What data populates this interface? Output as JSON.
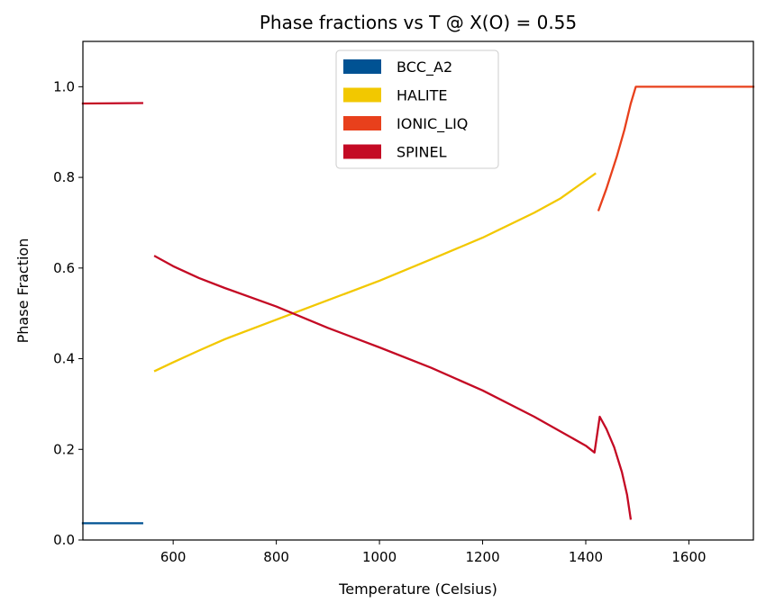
{
  "chart_data": {
    "type": "line",
    "title": "Phase fractions vs T @ X(O) = 0.55",
    "xlabel": "Temperature (Celsius)",
    "ylabel": "Phase Fraction",
    "xlim": [
      425,
      1725
    ],
    "ylim": [
      0.0,
      1.1
    ],
    "xticks": [
      600,
      800,
      1000,
      1200,
      1400,
      1600
    ],
    "yticks": [
      0.0,
      0.2,
      0.4,
      0.6,
      0.8,
      1.0
    ],
    "xtick_labels": [
      "600",
      "800",
      "1000",
      "1200",
      "1400",
      "1600"
    ],
    "ytick_labels": [
      "0.0",
      "0.2",
      "0.4",
      "0.6",
      "0.8",
      "1.0"
    ],
    "grid": false,
    "legend_position": "top-center",
    "series": [
      {
        "name": "BCC_A2",
        "color": "#005293",
        "segments": [
          [
            [
              425,
              0.037
            ],
            [
              540,
              0.037
            ]
          ]
        ]
      },
      {
        "name": "HALITE",
        "color": "#f2c800",
        "segments": [
          [
            [
              565,
              0.373
            ],
            [
              600,
              0.392
            ],
            [
              650,
              0.418
            ],
            [
              700,
              0.443
            ],
            [
              800,
              0.486
            ],
            [
              900,
              0.529
            ],
            [
              1000,
              0.572
            ],
            [
              1100,
              0.619
            ],
            [
              1200,
              0.667
            ],
            [
              1300,
              0.722
            ],
            [
              1350,
              0.753
            ],
            [
              1418,
              0.808
            ]
          ]
        ]
      },
      {
        "name": "IONIC_LIQ",
        "color": "#e8401c",
        "segments": [
          [
            [
              1425,
              0.728
            ],
            [
              1440,
              0.775
            ],
            [
              1460,
              0.845
            ],
            [
              1475,
              0.905
            ],
            [
              1487,
              0.962
            ],
            [
              1497,
              1.0
            ],
            [
              1725,
              1.0
            ]
          ]
        ]
      },
      {
        "name": "SPINEL",
        "color": "#c40a24",
        "segments": [
          [
            [
              425,
              0.963
            ],
            [
              540,
              0.964
            ]
          ],
          [
            [
              565,
              0.626
            ],
            [
              600,
              0.604
            ],
            [
              650,
              0.578
            ],
            [
              700,
              0.556
            ],
            [
              800,
              0.515
            ],
            [
              900,
              0.468
            ],
            [
              1000,
              0.425
            ],
            [
              1100,
              0.38
            ],
            [
              1200,
              0.33
            ],
            [
              1300,
              0.272
            ],
            [
              1400,
              0.208
            ],
            [
              1417,
              0.193
            ],
            [
              1427,
              0.272
            ],
            [
              1440,
              0.245
            ],
            [
              1455,
              0.205
            ],
            [
              1470,
              0.15
            ],
            [
              1480,
              0.1
            ],
            [
              1487,
              0.047
            ]
          ]
        ]
      }
    ]
  }
}
